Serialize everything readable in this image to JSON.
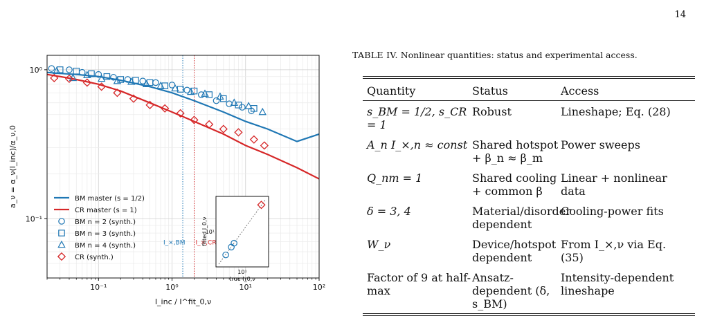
{
  "page_number": "14",
  "table": {
    "caption_label": "TABLE IV.",
    "caption_text": "Nonlinear quantities: status and experimental access.",
    "headers": [
      "Quantity",
      "Status",
      "Access"
    ],
    "rows": [
      {
        "quantity": "s_BM = 1/2, s_CR = 1",
        "status": "Robust",
        "access": "Lineshape; Eq. (28)"
      },
      {
        "quantity": "A_n I_×,n ≈ const",
        "status": "Shared hotspot + β_n ≈ β_m",
        "access": "Power sweeps"
      },
      {
        "quantity": "Q_nm = 1",
        "status": "Shared cooling + common β",
        "access": "Linear + nonlinear data"
      },
      {
        "quantity": "δ = 3, 4",
        "status": "Material/disorder dependent",
        "access": "Cooling-power fits"
      },
      {
        "quantity": "W_ν",
        "status": "Device/hotspot dependent",
        "access": "From I_×,ν via Eq. (35)"
      },
      {
        "quantity": "Factor of 9 at half-max",
        "status": "Ansatz-dependent (δ, s_BM)",
        "access": "Intensity-dependent lineshape"
      }
    ]
  },
  "chart_data": {
    "type": "line",
    "xlabel": "I_inc / I^fit_0,ν",
    "ylabel": "a_ν = α_ν(I_inc)/α_ν,0",
    "xscale": "log",
    "yscale": "log",
    "xlim": [
      0.02,
      100
    ],
    "ylim": [
      0.04,
      1.25
    ],
    "xticks": [
      "10⁻¹",
      "10⁰",
      "10¹",
      "10²"
    ],
    "yticks": [
      "10⁻¹",
      "10⁰"
    ],
    "grid": true,
    "legend_position": "lower-left",
    "colors": {
      "bm": "#1f77b4",
      "cr": "#d62728"
    },
    "series": [
      {
        "name": "BM master (s = 1/2)",
        "kind": "line",
        "color": "#1f77b4",
        "x": [
          0.02,
          0.03,
          0.05,
          0.1,
          0.2,
          0.5,
          1,
          2,
          5,
          10,
          20,
          50,
          100
        ],
        "y": [
          0.96,
          0.945,
          0.93,
          0.9,
          0.85,
          0.77,
          0.7,
          0.62,
          0.52,
          0.45,
          0.4,
          0.33,
          0.37
        ]
      },
      {
        "name": "CR master (s = 1)",
        "kind": "line",
        "color": "#d62728",
        "x": [
          0.02,
          0.03,
          0.05,
          0.1,
          0.2,
          0.5,
          1,
          2,
          5,
          10,
          20,
          50,
          100
        ],
        "y": [
          0.93,
          0.9,
          0.86,
          0.8,
          0.72,
          0.6,
          0.52,
          0.45,
          0.37,
          0.31,
          0.27,
          0.22,
          0.185
        ]
      },
      {
        "name": "BM n = 2 (synth.)",
        "kind": "marker",
        "marker": "circle",
        "color": "#1f77b4",
        "x": [
          0.023,
          0.04,
          0.06,
          0.1,
          0.16,
          0.25,
          0.4,
          0.6,
          1.0,
          1.6,
          2.5,
          4,
          6,
          9,
          12
        ],
        "y": [
          1.02,
          1.0,
          0.96,
          0.93,
          0.89,
          0.86,
          0.84,
          0.82,
          0.79,
          0.73,
          0.68,
          0.62,
          0.59,
          0.56,
          0.53
        ]
      },
      {
        "name": "BM n = 3 (synth.)",
        "kind": "marker",
        "marker": "square",
        "color": "#1f77b4",
        "x": [
          0.03,
          0.05,
          0.08,
          0.13,
          0.2,
          0.32,
          0.5,
          0.8,
          1.3,
          2,
          3.2,
          5,
          8,
          13
        ],
        "y": [
          1.0,
          0.98,
          0.94,
          0.9,
          0.86,
          0.85,
          0.82,
          0.78,
          0.74,
          0.72,
          0.68,
          0.64,
          0.58,
          0.55
        ]
      },
      {
        "name": "BM n = 4 (synth.)",
        "kind": "marker",
        "marker": "triangle",
        "color": "#1f77b4",
        "x": [
          0.027,
          0.045,
          0.07,
          0.11,
          0.18,
          0.28,
          0.45,
          0.7,
          1.1,
          1.8,
          2.8,
          4.5,
          7,
          11,
          17
        ],
        "y": [
          0.98,
          0.88,
          0.92,
          0.87,
          0.84,
          0.83,
          0.8,
          0.78,
          0.75,
          0.71,
          0.69,
          0.66,
          0.6,
          0.57,
          0.52
        ]
      },
      {
        "name": "CR (synth.)",
        "kind": "marker",
        "marker": "diamond",
        "color": "#d62728",
        "x": [
          0.025,
          0.04,
          0.07,
          0.11,
          0.18,
          0.3,
          0.5,
          0.8,
          1.3,
          2,
          3.2,
          5,
          8,
          13,
          18
        ],
        "y": [
          0.88,
          0.87,
          0.82,
          0.77,
          0.7,
          0.64,
          0.58,
          0.55,
          0.51,
          0.46,
          0.43,
          0.4,
          0.38,
          0.34,
          0.31
        ]
      }
    ],
    "vlines": [
      {
        "label": "I_×,BM",
        "x": 1.4,
        "color": "#1f77b4"
      },
      {
        "label": "I_×,CR",
        "x": 2.0,
        "color": "#d62728"
      }
    ],
    "inset": {
      "xlabel": "true I_0,ν",
      "ylabel": "fitted I_0,ν",
      "tick_label": "10¹",
      "points": [
        {
          "x": 3,
          "y": 3,
          "marker": "circle",
          "color": "#1f77b4"
        },
        {
          "x": 4.5,
          "y": 4.5,
          "marker": "circle",
          "color": "#1f77b4"
        },
        {
          "x": 5.5,
          "y": 5.5,
          "marker": "circle",
          "color": "#1f77b4"
        },
        {
          "x": 40,
          "y": 40,
          "marker": "diamond",
          "color": "#d62728"
        }
      ]
    }
  }
}
